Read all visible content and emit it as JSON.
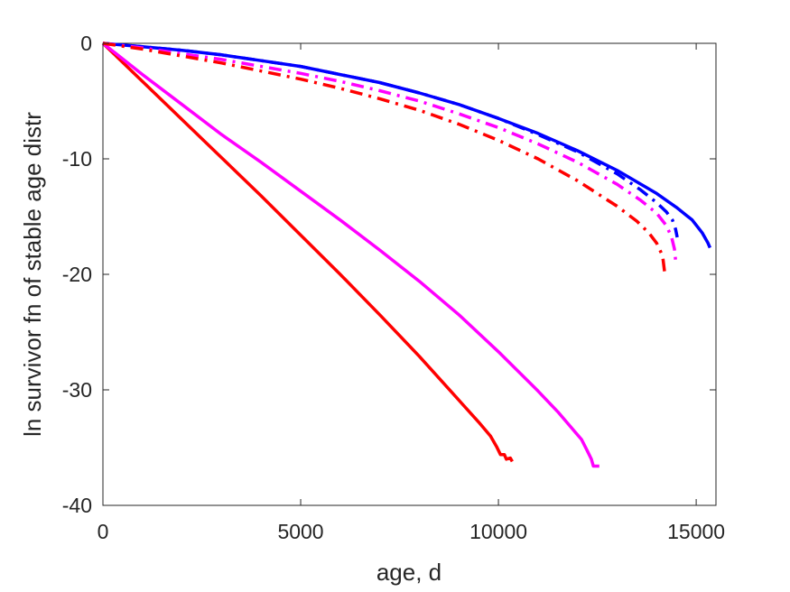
{
  "chart_data": {
    "type": "line",
    "title": "",
    "xlabel": "age, d",
    "ylabel": "ln survivor fn of stable age distr",
    "xlim": [
      0,
      15500
    ],
    "ylim": [
      -40,
      0
    ],
    "xticks": [
      0,
      5000,
      10000,
      15000
    ],
    "yticks": [
      0,
      -10,
      -20,
      -30,
      -40
    ],
    "xtick_labels": [
      "0",
      "5000",
      "10000",
      "15000"
    ],
    "ytick_labels": [
      "0",
      "-10",
      "-20",
      "-30",
      "-40"
    ],
    "grid": false,
    "legend": "none",
    "series": [
      {
        "color": "#ff0000",
        "dash": "solid",
        "x": [
          0,
          1000,
          2000,
          3000,
          4000,
          5000,
          6000,
          7000,
          8000,
          9000,
          9500,
          9800,
          9950,
          10050,
          10150,
          10200,
          10300,
          10350
        ],
        "y": [
          0,
          -3.3,
          -6.6,
          -9.9,
          -13.2,
          -16.6,
          -20.0,
          -23.5,
          -27.1,
          -30.9,
          -32.8,
          -34.0,
          -34.9,
          -35.6,
          -35.6,
          -36.0,
          -35.9,
          -36.2
        ]
      },
      {
        "color": "#ff00ff",
        "dash": "solid",
        "x": [
          0,
          1000,
          2000,
          3000,
          4000,
          5000,
          6000,
          7000,
          8000,
          9000,
          10000,
          11000,
          11500,
          11900,
          12100,
          12250,
          12350,
          12400,
          12550
        ],
        "y": [
          0,
          -2.7,
          -5.3,
          -7.9,
          -10.3,
          -12.8,
          -15.3,
          -17.9,
          -20.6,
          -23.5,
          -26.7,
          -30.1,
          -31.9,
          -33.5,
          -34.3,
          -35.3,
          -36.0,
          -36.6,
          -36.6
        ]
      },
      {
        "color": "#0000ff",
        "dash": "solid",
        "x": [
          0,
          1000,
          2000,
          3000,
          4000,
          5000,
          6000,
          7000,
          8000,
          9000,
          10000,
          11000,
          12000,
          13000,
          14000,
          14500,
          14900,
          15150,
          15300,
          15350
        ],
        "y": [
          0,
          -0.3,
          -0.6,
          -1.0,
          -1.5,
          -2.0,
          -2.7,
          -3.4,
          -4.3,
          -5.3,
          -6.5,
          -7.8,
          -9.3,
          -11.0,
          -13.0,
          -14.2,
          -15.3,
          -16.4,
          -17.3,
          -17.7
        ]
      },
      {
        "color": "#0000ff",
        "dash": "dashdot",
        "x": [
          0,
          1000,
          2000,
          3000,
          4000,
          5000,
          6000,
          7000,
          8000,
          9000,
          10000,
          11000,
          12000,
          13000,
          13600,
          14000,
          14250,
          14400,
          14480,
          14520
        ],
        "y": [
          0,
          -0.3,
          -0.6,
          -1.0,
          -1.5,
          -2.0,
          -2.7,
          -3.4,
          -4.3,
          -5.3,
          -6.5,
          -7.9,
          -9.4,
          -11.3,
          -12.7,
          -13.8,
          -14.6,
          -15.3,
          -16.1,
          -16.8
        ]
      },
      {
        "color": "#ff00ff",
        "dash": "dashdot",
        "x": [
          0,
          1000,
          2000,
          3000,
          4000,
          5000,
          6000,
          7000,
          8000,
          9000,
          10000,
          11000,
          12000,
          13000,
          13600,
          14000,
          14250,
          14380,
          14450,
          14480
        ],
        "y": [
          0,
          -0.4,
          -0.9,
          -1.4,
          -2.0,
          -2.6,
          -3.3,
          -4.1,
          -5.0,
          -6.1,
          -7.3,
          -8.7,
          -10.3,
          -12.2,
          -13.6,
          -14.7,
          -15.8,
          -16.8,
          -17.8,
          -18.8
        ]
      },
      {
        "color": "#ff0000",
        "dash": "dashdot",
        "x": [
          0,
          1000,
          2000,
          3000,
          4000,
          5000,
          6000,
          7000,
          8000,
          9000,
          10000,
          11000,
          12000,
          13000,
          13500,
          13800,
          14000,
          14150,
          14200
        ],
        "y": [
          0,
          -0.5,
          -1.1,
          -1.7,
          -2.4,
          -3.1,
          -3.9,
          -4.8,
          -5.8,
          -7.0,
          -8.4,
          -10.0,
          -11.9,
          -14.1,
          -15.4,
          -16.4,
          -17.3,
          -18.4,
          -19.8
        ]
      }
    ]
  }
}
